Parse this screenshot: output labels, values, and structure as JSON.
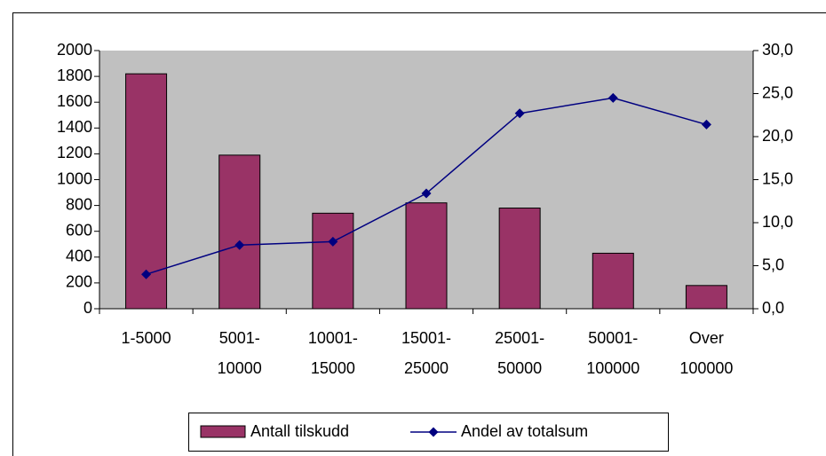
{
  "chart_data": {
    "type": "bar_line",
    "categories": [
      "1-5000",
      "5001- 10000",
      "10001- 15000",
      "15001- 25000",
      "25001- 50000",
      "50001- 100000",
      "Over 100000"
    ],
    "series": [
      {
        "name": "Antall tilskudd",
        "type": "bar",
        "color": "#993366",
        "values": [
          1820,
          1190,
          740,
          820,
          780,
          430,
          180
        ]
      },
      {
        "name": "Andel av totalsum",
        "type": "line",
        "axis": "y2",
        "color": "#000080",
        "values": [
          4.0,
          7.4,
          7.8,
          13.4,
          22.7,
          24.5,
          21.4
        ]
      }
    ],
    "ylim": [
      0,
      2000
    ],
    "yticks": [
      0,
      200,
      400,
      600,
      800,
      1000,
      1200,
      1400,
      1600,
      1800,
      2000
    ],
    "y2lim": [
      0,
      30
    ],
    "y2ticks": [
      {
        "value": 0,
        "label": "0,0"
      },
      {
        "value": 5,
        "label": "5,0"
      },
      {
        "value": 10,
        "label": "10,0"
      },
      {
        "value": 15,
        "label": "15,0"
      },
      {
        "value": 20,
        "label": "20,0"
      },
      {
        "value": 25,
        "label": "25,0"
      },
      {
        "value": 30,
        "label": "30,0"
      }
    ],
    "plot_background": "#c0c0c0",
    "legend": "bottom"
  }
}
